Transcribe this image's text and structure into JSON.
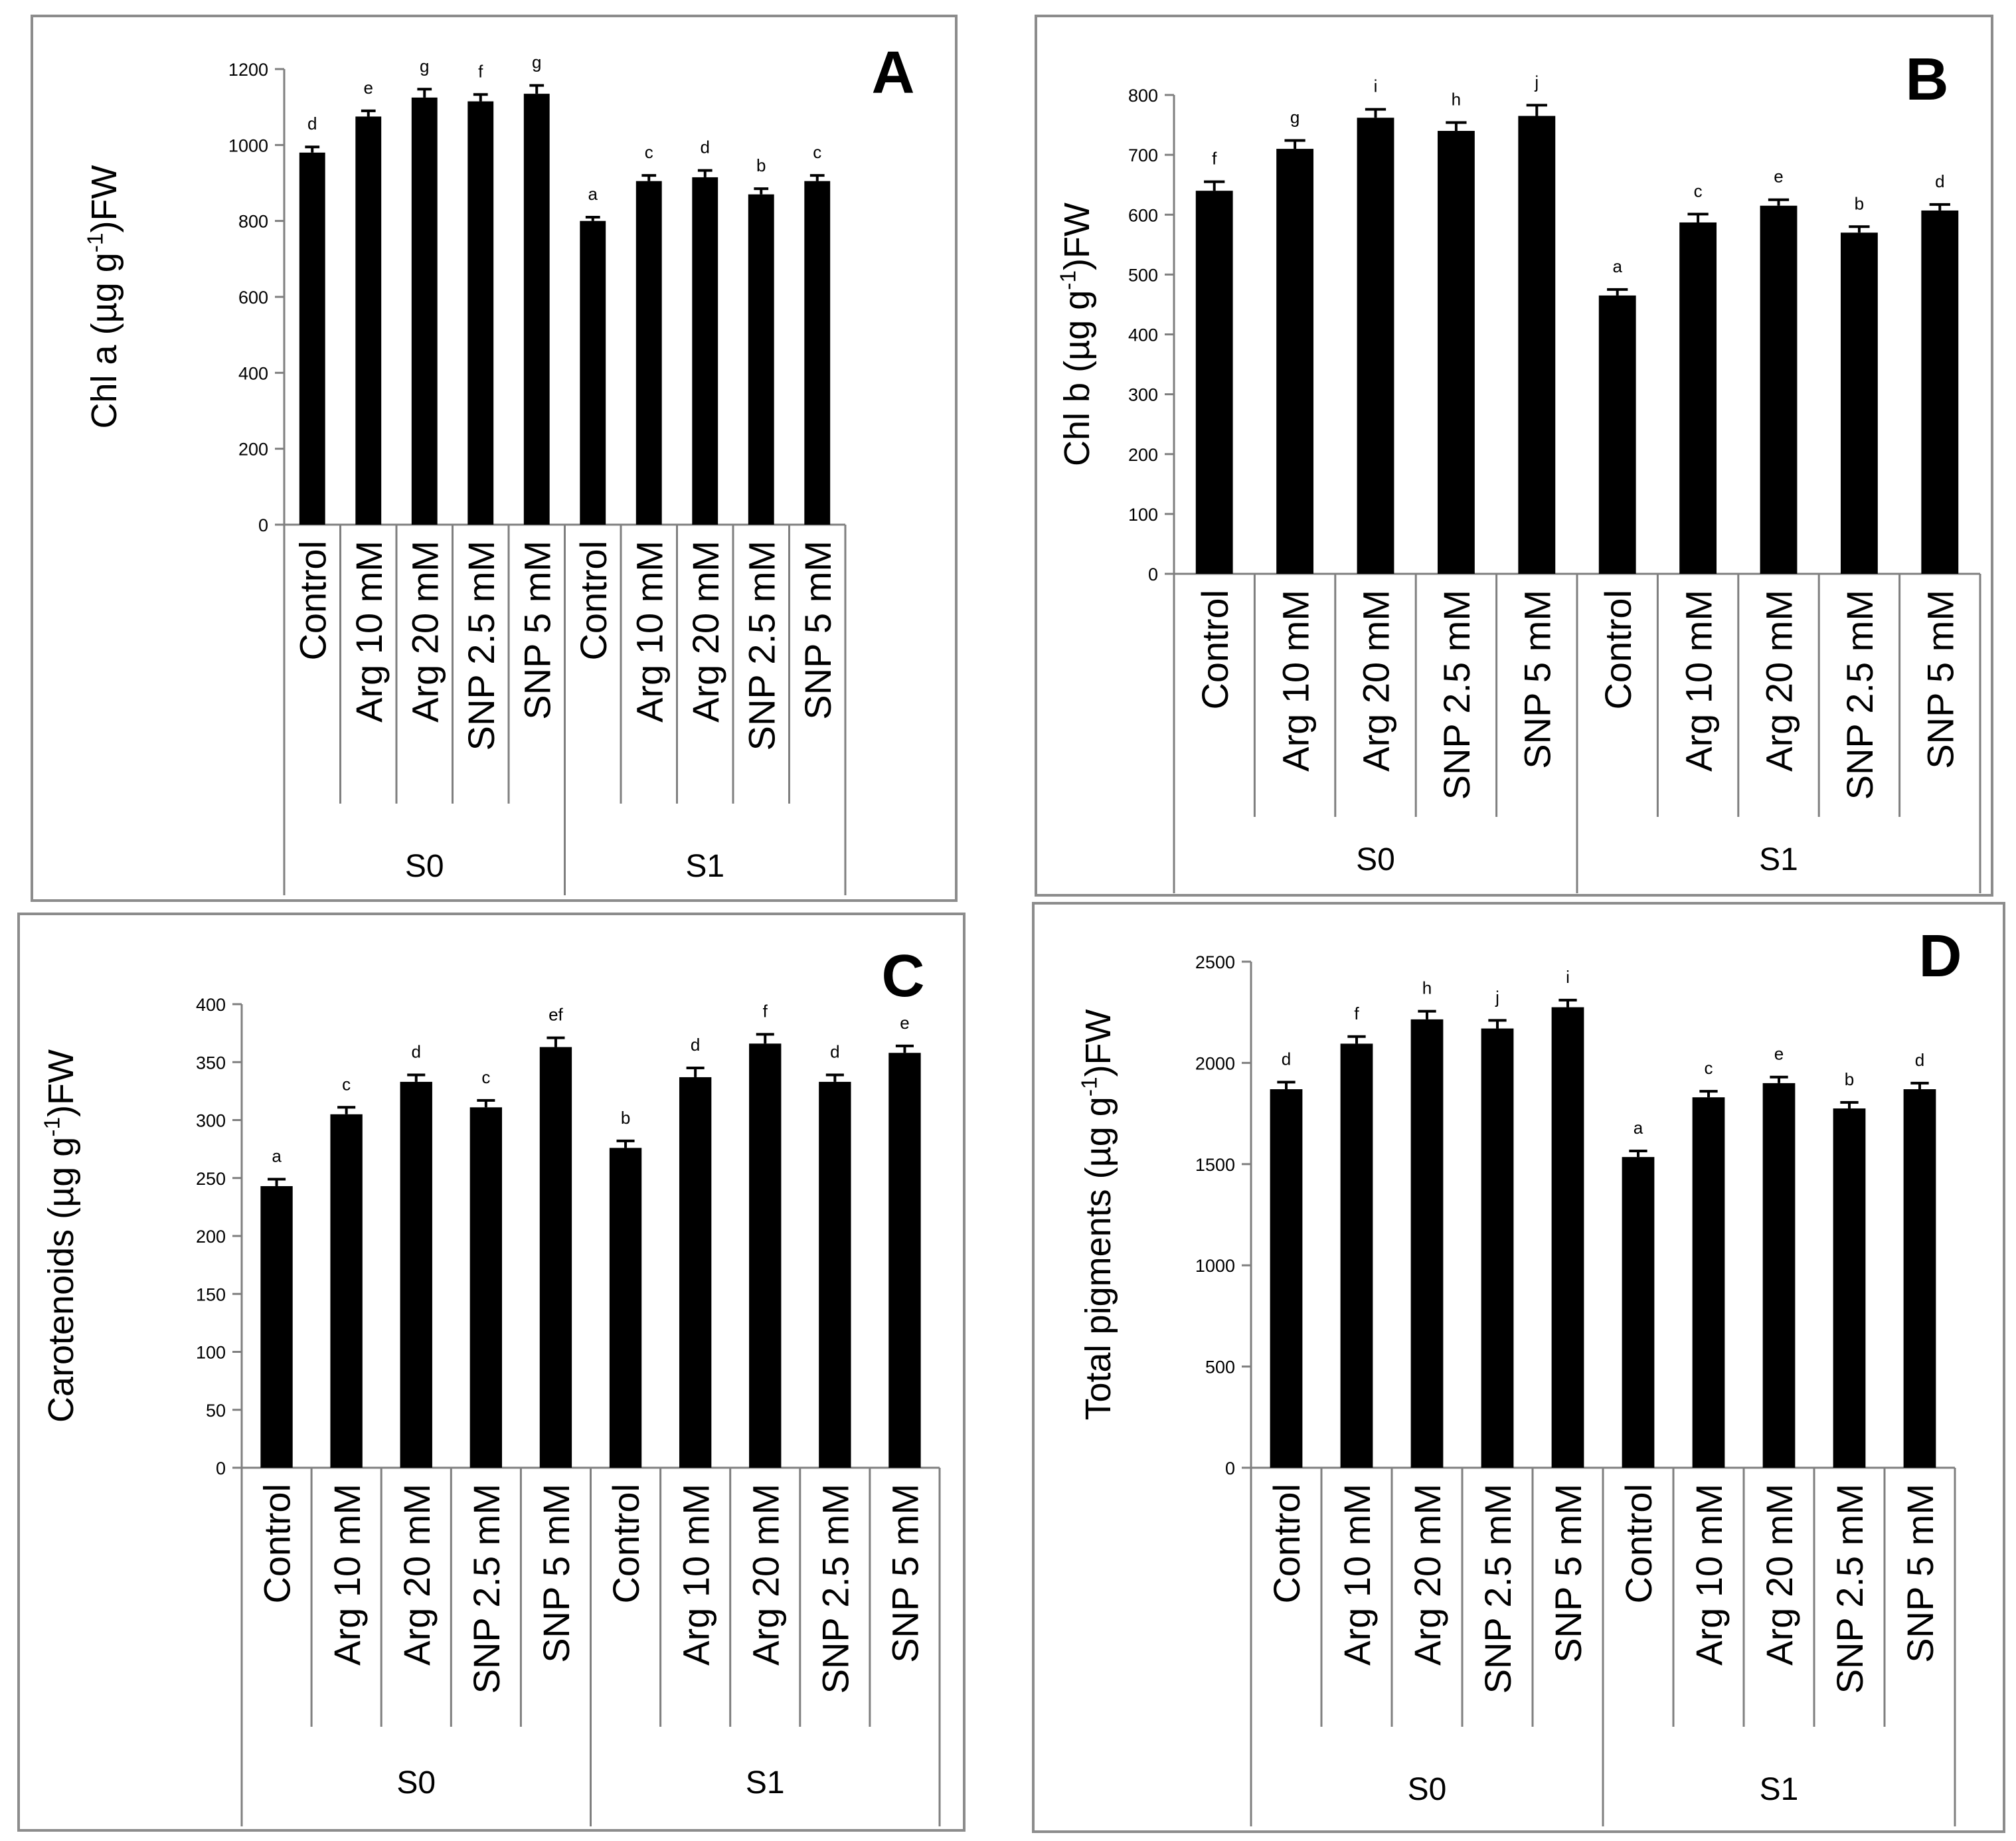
{
  "figure_description_free": true,
  "chart_data": [
    {
      "type": "bar",
      "panel_letter": "A",
      "ylabel_pre": "Chl a (",
      "ylabel_unit": "µg g",
      "ylabel_sup": "-1",
      "ylabel_post": ")FW",
      "ylim": [
        0,
        1200
      ],
      "yticks": [
        0,
        200,
        400,
        600,
        800,
        1000,
        1200
      ],
      "categories": [
        "Control",
        "Arg 10 mM",
        "Arg 20 mM",
        "SNP 2.5 mM",
        "SNP 5 mM",
        "Control",
        "Arg 10 mM",
        "Arg 20 mM",
        "SNP 2.5 mM",
        "SNP 5 mM"
      ],
      "groups": [
        "S0",
        "S1"
      ],
      "values": [
        980,
        1075,
        1125,
        1115,
        1135,
        800,
        905,
        915,
        870,
        905
      ],
      "errors": [
        15,
        15,
        22,
        18,
        22,
        10,
        15,
        18,
        15,
        15
      ],
      "letters": [
        "d",
        "e",
        "g",
        "f",
        "g",
        "a",
        "c",
        "d",
        "b",
        "c"
      ]
    },
    {
      "type": "bar",
      "panel_letter": "B",
      "ylabel_pre": "Chl b (",
      "ylabel_unit": "µg g",
      "ylabel_sup": "-1",
      "ylabel_post": ")FW",
      "ylim": [
        0,
        800
      ],
      "yticks": [
        0,
        100,
        200,
        300,
        400,
        500,
        600,
        700,
        800
      ],
      "categories": [
        "Control",
        "Arg 10 mM",
        "Arg 20 mM",
        "SNP 2.5 mM",
        "SNP 5 mM",
        "Control",
        "Arg 10 mM",
        "Arg 20 mM",
        "SNP 2.5 mM",
        "SNP 5 mM"
      ],
      "groups": [
        "S0",
        "S1"
      ],
      "values": [
        640,
        710,
        762,
        740,
        765,
        465,
        587,
        615,
        570,
        607
      ],
      "errors": [
        15,
        14,
        14,
        14,
        18,
        10,
        14,
        10,
        10,
        10
      ],
      "letters": [
        "f",
        "g",
        "i",
        "h",
        "j",
        "a",
        "c",
        "e",
        "b",
        "d"
      ]
    },
    {
      "type": "bar",
      "panel_letter": "C",
      "ylabel_pre": "Carotenoids (",
      "ylabel_unit": "µg g",
      "ylabel_sup": "-1",
      "ylabel_post": ")FW",
      "ylim": [
        0,
        400
      ],
      "yticks": [
        0,
        50,
        100,
        150,
        200,
        250,
        300,
        350,
        400
      ],
      "categories": [
        "Control",
        "Arg 10 mM",
        "Arg 20 mM",
        "SNP 2.5 mM",
        "SNP 5 mM",
        "Control",
        "Arg 10 mM",
        "Arg 20 mM",
        "SNP 2.5 mM",
        "SNP 5 mM"
      ],
      "groups": [
        "S0",
        "S1"
      ],
      "values": [
        243,
        305,
        333,
        311,
        363,
        276,
        337,
        366,
        333,
        358
      ],
      "errors": [
        6,
        6,
        6,
        6,
        8,
        6,
        8,
        8,
        6,
        6
      ],
      "letters": [
        "a",
        "c",
        "d",
        "c",
        "ef",
        "b",
        "d",
        "f",
        "d",
        "e"
      ]
    },
    {
      "type": "bar",
      "panel_letter": "D",
      "ylabel_pre": "Total pigments (",
      "ylabel_unit": "µg g",
      "ylabel_sup": "-1",
      "ylabel_post": ")FW",
      "ylim": [
        0,
        2500
      ],
      "yticks": [
        0,
        500,
        1000,
        1500,
        2000,
        2500
      ],
      "categories": [
        "Control",
        "Arg 10 mM",
        "Arg 20 mM",
        "SNP 2.5 mM",
        "SNP 5 mM",
        "Control",
        "Arg 10 mM",
        "Arg 20 mM",
        "SNP 2.5 mM",
        "SNP 5 mM"
      ],
      "groups": [
        "S0",
        "S1"
      ],
      "values": [
        1870,
        2095,
        2215,
        2170,
        2275,
        1535,
        1830,
        1900,
        1775,
        1870
      ],
      "errors": [
        35,
        35,
        40,
        40,
        35,
        30,
        30,
        30,
        30,
        30
      ],
      "letters": [
        "d",
        "f",
        "h",
        "j",
        "i",
        "a",
        "c",
        "e",
        "b",
        "d"
      ]
    }
  ]
}
